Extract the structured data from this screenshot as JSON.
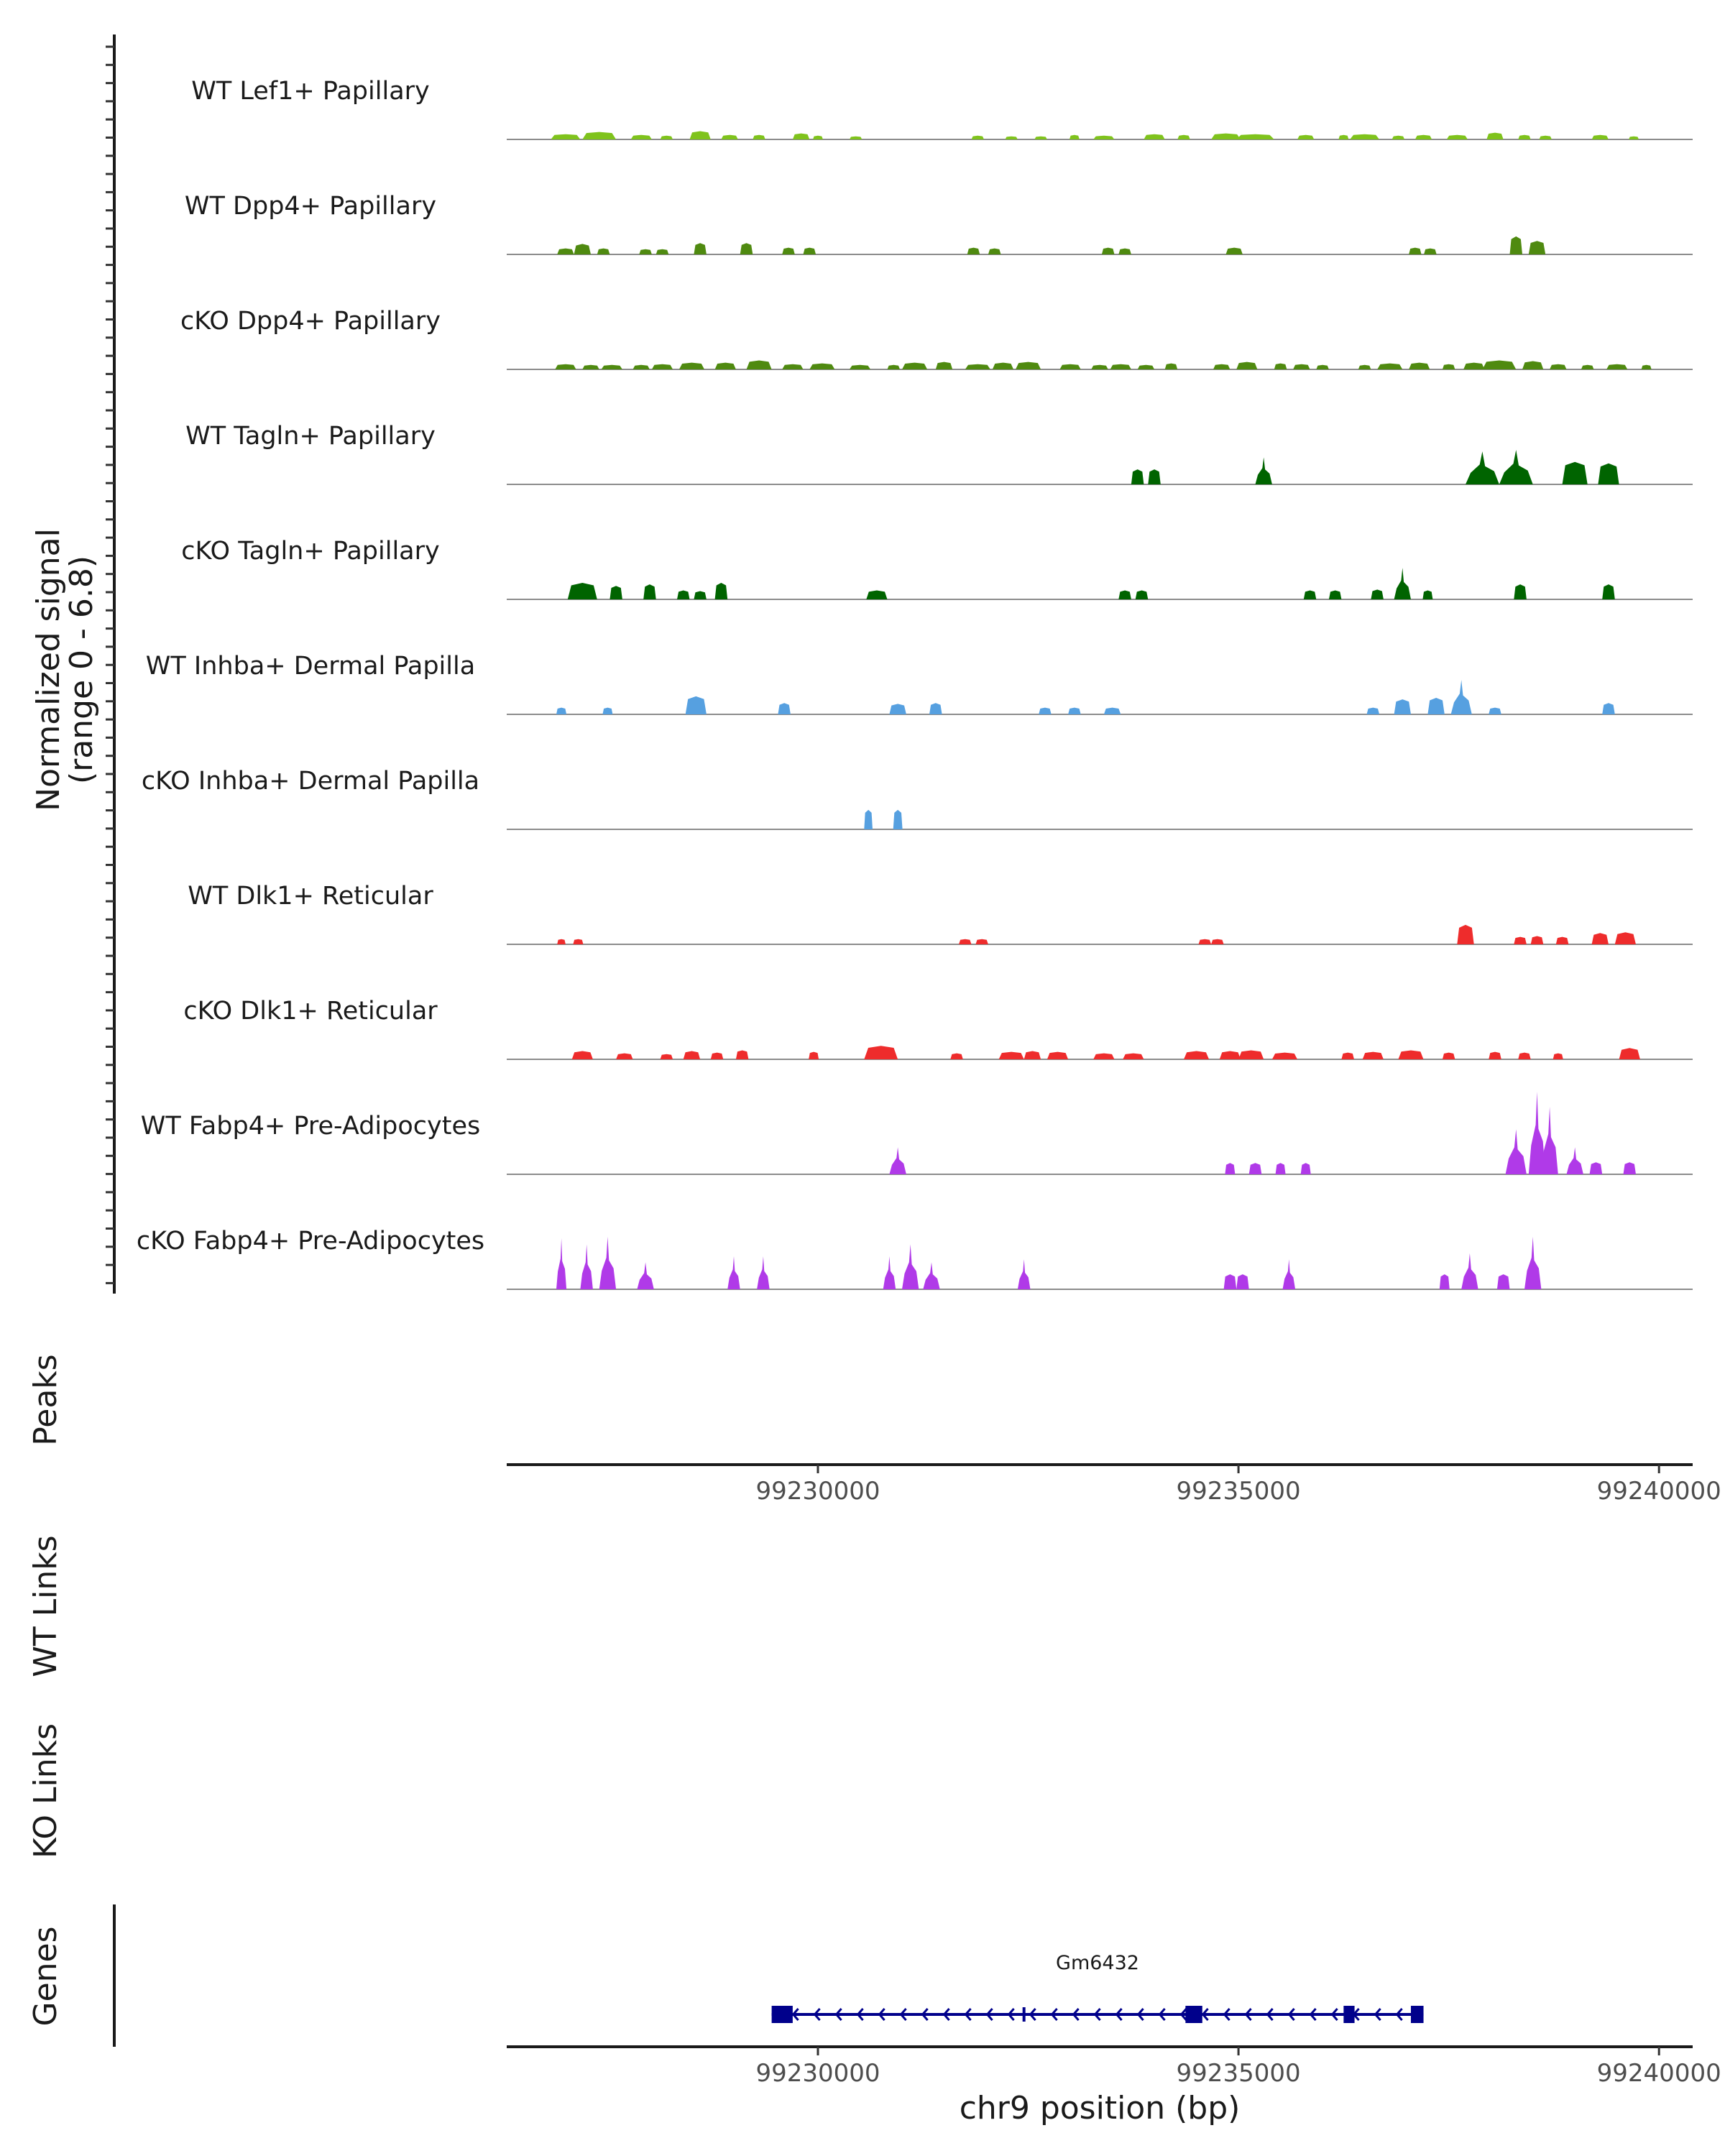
{
  "chart_data": {
    "type": "coverage",
    "y_axis_title_line1": "Normalized signal",
    "y_axis_title_line2": "(range 0 - 6.8)",
    "y_range": [
      0,
      6.8
    ],
    "x_axis_title": "chr9 position (bp)",
    "x_range": [
      99226300,
      99240400
    ],
    "x_ticks": [
      99230000,
      99235000,
      99240000
    ],
    "x_tick_labels": [
      "99230000",
      "99235000",
      "99240000"
    ],
    "section_labels": {
      "peaks": "Peaks",
      "wt_links": "WT Links",
      "ko_links": "KO Links",
      "genes": "Genes"
    },
    "gene": {
      "name": "Gm6432",
      "strand": "-",
      "start": 99229450,
      "end": 99237200,
      "exons": [
        [
          99229450,
          99229700
        ],
        [
          99234370,
          99234570
        ],
        [
          99236250,
          99236380
        ],
        [
          99237050,
          99237200
        ]
      ],
      "color": "#00008b"
    },
    "series": [
      {
        "name": "WT Lef1+ Papillary",
        "color": "#7fc31c",
        "peaks": [
          [
            99227000,
            350,
            0.35
          ],
          [
            99227400,
            400,
            0.5
          ],
          [
            99227900,
            250,
            0.3
          ],
          [
            99228200,
            150,
            0.25
          ],
          [
            99228600,
            250,
            0.55
          ],
          [
            99228950,
            200,
            0.3
          ],
          [
            99229300,
            150,
            0.3
          ],
          [
            99229800,
            200,
            0.4
          ],
          [
            99230000,
            120,
            0.25
          ],
          [
            99230450,
            150,
            0.2
          ],
          [
            99231900,
            150,
            0.25
          ],
          [
            99232300,
            150,
            0.2
          ],
          [
            99232650,
            150,
            0.2
          ],
          [
            99233050,
            120,
            0.3
          ],
          [
            99233400,
            250,
            0.25
          ],
          [
            99234000,
            250,
            0.35
          ],
          [
            99234350,
            150,
            0.3
          ],
          [
            99234850,
            350,
            0.4
          ],
          [
            99235200,
            450,
            0.35
          ],
          [
            99235800,
            200,
            0.3
          ],
          [
            99236250,
            120,
            0.3
          ],
          [
            99236500,
            350,
            0.35
          ],
          [
            99236900,
            150,
            0.25
          ],
          [
            99237200,
            200,
            0.3
          ],
          [
            99237600,
            250,
            0.3
          ],
          [
            99238050,
            200,
            0.45
          ],
          [
            99238400,
            150,
            0.3
          ],
          [
            99238650,
            150,
            0.25
          ],
          [
            99239300,
            200,
            0.3
          ],
          [
            99239700,
            120,
            0.2
          ]
        ]
      },
      {
        "name": "WT Dpp4+ Papillary",
        "color": "#4f8a10",
        "peaks": [
          [
            99227000,
            200,
            0.4
          ],
          [
            99227200,
            200,
            0.7
          ],
          [
            99227450,
            150,
            0.4
          ],
          [
            99227950,
            150,
            0.35
          ],
          [
            99228150,
            150,
            0.35
          ],
          [
            99228600,
            150,
            0.75
          ],
          [
            99229150,
            150,
            0.75
          ],
          [
            99229650,
            150,
            0.45
          ],
          [
            99229900,
            150,
            0.45
          ],
          [
            99231850,
            150,
            0.45
          ],
          [
            99232100,
            150,
            0.4
          ],
          [
            99233450,
            150,
            0.45
          ],
          [
            99233650,
            150,
            0.4
          ],
          [
            99234950,
            200,
            0.45
          ],
          [
            99237100,
            150,
            0.45
          ],
          [
            99237280,
            150,
            0.4
          ],
          [
            99238300,
            150,
            1.2
          ],
          [
            99238550,
            200,
            0.9
          ]
        ]
      },
      {
        "name": "cKO Dpp4+ Papillary",
        "color": "#4f8a10",
        "peaks": [
          [
            99227000,
            250,
            0.35
          ],
          [
            99227300,
            200,
            0.3
          ],
          [
            99227550,
            250,
            0.3
          ],
          [
            99227900,
            200,
            0.3
          ],
          [
            99228150,
            250,
            0.35
          ],
          [
            99228500,
            300,
            0.45
          ],
          [
            99228900,
            250,
            0.45
          ],
          [
            99229300,
            300,
            0.6
          ],
          [
            99229700,
            250,
            0.35
          ],
          [
            99230050,
            300,
            0.4
          ],
          [
            99230500,
            250,
            0.3
          ],
          [
            99230900,
            150,
            0.3
          ],
          [
            99231150,
            300,
            0.45
          ],
          [
            99231500,
            200,
            0.5
          ],
          [
            99231900,
            300,
            0.35
          ],
          [
            99232200,
            250,
            0.45
          ],
          [
            99232500,
            300,
            0.5
          ],
          [
            99233000,
            250,
            0.35
          ],
          [
            99233350,
            200,
            0.3
          ],
          [
            99233600,
            250,
            0.35
          ],
          [
            99233900,
            200,
            0.3
          ],
          [
            99234200,
            150,
            0.4
          ],
          [
            99234800,
            200,
            0.35
          ],
          [
            99235100,
            250,
            0.5
          ],
          [
            99235500,
            150,
            0.4
          ],
          [
            99235750,
            200,
            0.35
          ],
          [
            99236000,
            150,
            0.3
          ],
          [
            99236500,
            150,
            0.3
          ],
          [
            99236800,
            300,
            0.4
          ],
          [
            99237150,
            250,
            0.45
          ],
          [
            99237500,
            150,
            0.35
          ],
          [
            99237800,
            250,
            0.45
          ],
          [
            99238100,
            400,
            0.6
          ],
          [
            99238500,
            250,
            0.55
          ],
          [
            99238800,
            200,
            0.35
          ],
          [
            99239150,
            150,
            0.3
          ],
          [
            99239500,
            250,
            0.35
          ],
          [
            99239850,
            120,
            0.3
          ]
        ]
      },
      {
        "name": "WT Tagln+ Papillary",
        "color": "#006400",
        "peaks": [
          [
            99233800,
            150,
            1.0
          ],
          [
            99234000,
            150,
            1.0
          ],
          [
            99235300,
            200,
            1.8
          ],
          [
            99237900,
            400,
            2.2
          ],
          [
            99238300,
            400,
            2.3
          ],
          [
            99239000,
            300,
            1.5
          ],
          [
            99239400,
            250,
            1.4
          ]
        ]
      },
      {
        "name": "cKO Tagln+ Papillary",
        "color": "#006400",
        "peaks": [
          [
            99227200,
            350,
            1.1
          ],
          [
            99227600,
            150,
            0.9
          ],
          [
            99228000,
            150,
            1.0
          ],
          [
            99228400,
            150,
            0.6
          ],
          [
            99228600,
            150,
            0.55
          ],
          [
            99228850,
            150,
            1.1
          ],
          [
            99230700,
            250,
            0.6
          ],
          [
            99233650,
            150,
            0.6
          ],
          [
            99233850,
            150,
            0.6
          ],
          [
            99235850,
            150,
            0.6
          ],
          [
            99236150,
            150,
            0.6
          ],
          [
            99236650,
            150,
            0.65
          ],
          [
            99236950,
            200,
            2.1
          ],
          [
            99237250,
            120,
            0.6
          ],
          [
            99238350,
            150,
            1.0
          ],
          [
            99239400,
            150,
            1.0
          ]
        ]
      },
      {
        "name": "WT Inhba+ Dermal Papilla",
        "color": "#56a0e0",
        "peaks": [
          [
            99226950,
            120,
            0.45
          ],
          [
            99227500,
            120,
            0.45
          ],
          [
            99228550,
            250,
            1.2
          ],
          [
            99229600,
            150,
            0.75
          ],
          [
            99230950,
            200,
            0.7
          ],
          [
            99231400,
            150,
            0.75
          ],
          [
            99232700,
            150,
            0.45
          ],
          [
            99233050,
            150,
            0.45
          ],
          [
            99233500,
            200,
            0.45
          ],
          [
            99236600,
            150,
            0.45
          ],
          [
            99236950,
            200,
            1.0
          ],
          [
            99237350,
            200,
            1.1
          ],
          [
            99237650,
            250,
            2.3
          ],
          [
            99238050,
            150,
            0.45
          ],
          [
            99239400,
            150,
            0.75
          ]
        ]
      },
      {
        "name": "cKO Inhba+ Dermal Papilla",
        "color": "#56a0e0",
        "peaks": [
          [
            99230600,
            100,
            1.3
          ],
          [
            99230950,
            110,
            1.3
          ]
        ]
      },
      {
        "name": "WT Dlk1+ Reticular",
        "color": "#ee2c2c",
        "peaks": [
          [
            99226950,
            100,
            0.35
          ],
          [
            99227150,
            120,
            0.35
          ],
          [
            99231750,
            150,
            0.35
          ],
          [
            99231950,
            150,
            0.35
          ],
          [
            99234600,
            150,
            0.35
          ],
          [
            99234750,
            150,
            0.35
          ],
          [
            99237700,
            200,
            1.3
          ],
          [
            99238350,
            150,
            0.5
          ],
          [
            99238550,
            150,
            0.55
          ],
          [
            99238850,
            150,
            0.5
          ],
          [
            99239300,
            200,
            0.75
          ],
          [
            99239600,
            250,
            0.8
          ]
        ]
      },
      {
        "name": "cKO Dlk1+ Reticular",
        "color": "#ee2c2c",
        "peaks": [
          [
            99227200,
            250,
            0.55
          ],
          [
            99227700,
            200,
            0.4
          ],
          [
            99228200,
            150,
            0.35
          ],
          [
            99228500,
            200,
            0.55
          ],
          [
            99228800,
            150,
            0.45
          ],
          [
            99229100,
            150,
            0.6
          ],
          [
            99229950,
            120,
            0.5
          ],
          [
            99230750,
            400,
            0.9
          ],
          [
            99231650,
            150,
            0.4
          ],
          [
            99232300,
            300,
            0.5
          ],
          [
            99232550,
            200,
            0.55
          ],
          [
            99232850,
            250,
            0.5
          ],
          [
            99233400,
            250,
            0.4
          ],
          [
            99233750,
            250,
            0.4
          ],
          [
            99234500,
            300,
            0.55
          ],
          [
            99234900,
            250,
            0.55
          ],
          [
            99235150,
            300,
            0.6
          ],
          [
            99235550,
            300,
            0.45
          ],
          [
            99236300,
            150,
            0.45
          ],
          [
            99236600,
            250,
            0.5
          ],
          [
            99237050,
            300,
            0.6
          ],
          [
            99237500,
            150,
            0.45
          ],
          [
            99238050,
            150,
            0.5
          ],
          [
            99238400,
            150,
            0.45
          ],
          [
            99238800,
            120,
            0.4
          ],
          [
            99239650,
            250,
            0.75
          ]
        ]
      },
      {
        "name": "WT Fabp4+ Pre-Adipocytes",
        "color": "#b03ae8",
        "peaks": [
          [
            99230950,
            200,
            1.8
          ],
          [
            99234900,
            120,
            0.75
          ],
          [
            99235200,
            150,
            0.75
          ],
          [
            99235500,
            120,
            0.75
          ],
          [
            99235800,
            120,
            0.75
          ],
          [
            99238300,
            250,
            3.0
          ],
          [
            99238550,
            200,
            5.5
          ],
          [
            99238700,
            200,
            4.5
          ],
          [
            99239000,
            200,
            1.8
          ],
          [
            99239250,
            150,
            0.8
          ],
          [
            99239650,
            150,
            0.8
          ]
        ]
      },
      {
        "name": "cKO Fabp4+ Pre-Adipocytes",
        "color": "#b03ae8",
        "peaks": [
          [
            99226950,
            120,
            3.4
          ],
          [
            99227250,
            150,
            3.0
          ],
          [
            99227500,
            200,
            3.5
          ],
          [
            99227950,
            200,
            1.8
          ],
          [
            99229000,
            150,
            2.2
          ],
          [
            99229350,
            150,
            2.2
          ],
          [
            99230850,
            150,
            2.2
          ],
          [
            99231100,
            200,
            3.0
          ],
          [
            99231350,
            200,
            1.8
          ],
          [
            99232450,
            150,
            2.0
          ],
          [
            99234900,
            150,
            1.0
          ],
          [
            99235050,
            150,
            1.0
          ],
          [
            99235600,
            150,
            2.0
          ],
          [
            99237450,
            120,
            1.0
          ],
          [
            99237750,
            200,
            2.4
          ],
          [
            99238150,
            150,
            1.0
          ],
          [
            99238500,
            200,
            3.5
          ]
        ]
      }
    ]
  }
}
